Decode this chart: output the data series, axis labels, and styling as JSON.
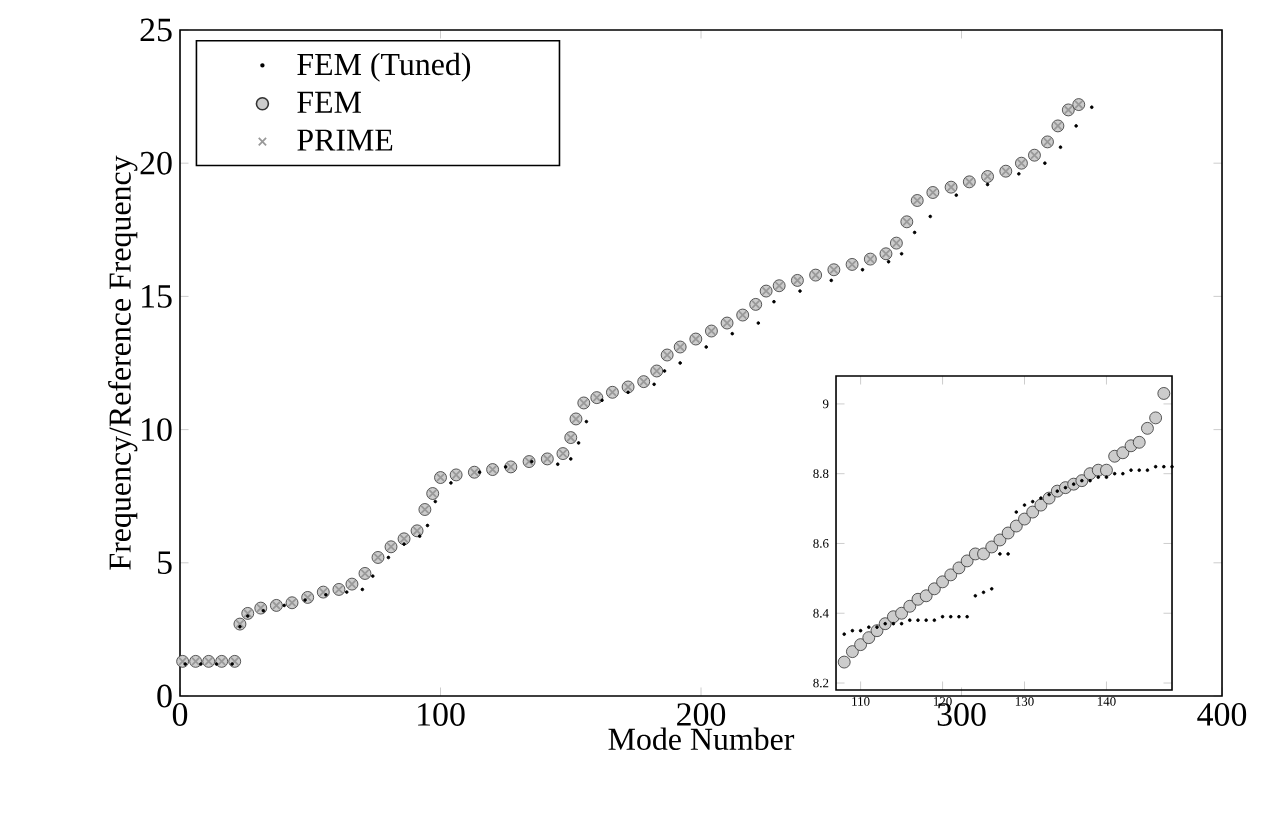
{
  "chart_data": [
    {
      "type": "scatter",
      "xlabel": "Mode Number",
      "ylabel": "Frequency/Reference Frequency",
      "xlim": [
        0,
        400
      ],
      "ylim": [
        0,
        25
      ],
      "xticks": [
        0,
        100,
        200,
        300,
        400
      ],
      "yticks": [
        0,
        5,
        10,
        15,
        20,
        25
      ],
      "legend": "top left",
      "grid": false,
      "series": [
        {
          "name": "FEM (Tuned)",
          "color": "#000000",
          "marker": "point",
          "x": [
            2,
            8,
            14,
            20,
            23,
            26,
            32,
            40,
            48,
            56,
            64,
            70,
            74,
            80,
            86,
            92,
            95,
            98,
            104,
            115,
            125,
            135,
            145,
            150,
            153,
            156,
            162,
            172,
            182,
            186,
            192,
            202,
            212,
            222,
            228,
            238,
            250,
            262,
            272,
            277,
            282,
            288,
            298,
            310,
            322,
            332,
            338,
            344,
            350
          ],
          "values": [
            1.2,
            1.2,
            1.2,
            1.2,
            2.6,
            3.0,
            3.2,
            3.4,
            3.6,
            3.8,
            3.9,
            4.0,
            4.5,
            5.2,
            5.7,
            6.0,
            6.4,
            7.3,
            8.0,
            8.4,
            8.6,
            8.8,
            8.7,
            8.9,
            9.5,
            10.3,
            11.1,
            11.4,
            11.7,
            12.2,
            12.5,
            13.1,
            13.6,
            14.0,
            14.8,
            15.2,
            15.6,
            16.0,
            16.3,
            16.6,
            17.4,
            18.0,
            18.8,
            19.2,
            19.6,
            20.0,
            20.6,
            21.4,
            22.1
          ]
        },
        {
          "name": "FEM",
          "color": "#333333",
          "marker": "circle",
          "x": [
            1,
            6,
            11,
            16,
            21,
            23,
            26,
            31,
            37,
            43,
            49,
            55,
            61,
            66,
            71,
            76,
            81,
            86,
            91,
            94,
            97,
            100,
            106,
            113,
            120,
            127,
            134,
            141,
            147,
            150,
            152,
            155,
            160,
            166,
            172,
            178,
            183,
            187,
            192,
            198,
            204,
            210,
            216,
            221,
            225,
            230,
            237,
            244,
            251,
            258,
            265,
            271,
            275,
            279,
            283,
            289,
            296,
            303,
            310,
            317,
            323,
            328,
            333,
            337,
            341,
            345
          ],
          "values": [
            1.3,
            1.3,
            1.3,
            1.3,
            1.3,
            2.7,
            3.1,
            3.3,
            3.4,
            3.5,
            3.7,
            3.9,
            4.0,
            4.2,
            4.6,
            5.2,
            5.6,
            5.9,
            6.2,
            7.0,
            7.6,
            8.2,
            8.3,
            8.4,
            8.5,
            8.6,
            8.8,
            8.9,
            9.1,
            9.7,
            10.4,
            11.0,
            11.2,
            11.4,
            11.6,
            11.8,
            12.2,
            12.8,
            13.1,
            13.4,
            13.7,
            14.0,
            14.3,
            14.7,
            15.2,
            15.4,
            15.6,
            15.8,
            16.0,
            16.2,
            16.4,
            16.6,
            17.0,
            17.8,
            18.6,
            18.9,
            19.1,
            19.3,
            19.5,
            19.7,
            20.0,
            20.3,
            20.8,
            21.4,
            22.0,
            22.2
          ]
        },
        {
          "name": "PRIME",
          "color": "#999999",
          "marker": "cross",
          "x": [
            1,
            6,
            11,
            16,
            21,
            23,
            26,
            31,
            37,
            43,
            49,
            55,
            61,
            66,
            71,
            76,
            81,
            86,
            91,
            94,
            97,
            100,
            106,
            113,
            120,
            127,
            134,
            141,
            147,
            150,
            152,
            155,
            160,
            166,
            172,
            178,
            183,
            187,
            192,
            198,
            204,
            210,
            216,
            221,
            225,
            230,
            237,
            244,
            251,
            258,
            265,
            271,
            275,
            279,
            283,
            289,
            296,
            303,
            310,
            317,
            323,
            328,
            333,
            337,
            341,
            345
          ],
          "values": [
            1.3,
            1.3,
            1.3,
            1.3,
            1.3,
            2.7,
            3.1,
            3.3,
            3.4,
            3.5,
            3.7,
            3.9,
            4.0,
            4.2,
            4.6,
            5.2,
            5.6,
            5.9,
            6.2,
            7.0,
            7.6,
            8.2,
            8.3,
            8.4,
            8.5,
            8.6,
            8.8,
            8.9,
            9.1,
            9.7,
            10.4,
            11.0,
            11.2,
            11.4,
            11.6,
            11.8,
            12.2,
            12.8,
            13.1,
            13.4,
            13.7,
            14.0,
            14.3,
            14.7,
            15.2,
            15.4,
            15.6,
            15.8,
            16.0,
            16.2,
            16.4,
            16.6,
            17.0,
            17.8,
            18.6,
            18.9,
            19.1,
            19.3,
            19.5,
            19.7,
            20.0,
            20.3,
            20.8,
            21.4,
            22.0,
            22.2
          ]
        }
      ]
    },
    {
      "type": "scatter",
      "xlim": [
        107,
        148
      ],
      "ylim": [
        8.18,
        9.08
      ],
      "xticks": [
        110,
        120,
        130,
        140
      ],
      "yticks": [
        8.2,
        8.4,
        8.6,
        8.8,
        9
      ],
      "legend": false,
      "grid": false,
      "series": [
        {
          "color": "#000000",
          "marker": "point",
          "x": [
            108,
            109,
            110,
            111,
            112,
            113,
            114,
            115,
            116,
            117,
            118,
            119,
            120,
            121,
            122,
            123,
            124,
            125,
            126,
            127,
            128,
            129,
            130,
            131,
            132,
            133,
            134,
            135,
            136,
            137,
            138,
            139,
            140,
            141,
            142,
            143,
            144,
            145,
            146,
            147,
            148
          ],
          "values": [
            8.34,
            8.35,
            8.35,
            8.36,
            8.36,
            8.37,
            8.37,
            8.37,
            8.38,
            8.38,
            8.38,
            8.38,
            8.39,
            8.39,
            8.39,
            8.39,
            8.45,
            8.46,
            8.47,
            8.57,
            8.57,
            8.69,
            8.71,
            8.72,
            8.73,
            8.74,
            8.75,
            8.76,
            8.77,
            8.78,
            8.78,
            8.79,
            8.79,
            8.8,
            8.8,
            8.81,
            8.81,
            8.81,
            8.82,
            8.82,
            8.82
          ]
        },
        {
          "color": "#333333",
          "marker": "circle",
          "x": [
            108,
            109,
            110,
            111,
            112,
            113,
            114,
            115,
            116,
            117,
            118,
            119,
            120,
            121,
            122,
            123,
            124,
            125,
            126,
            127,
            128,
            129,
            130,
            131,
            132,
            133,
            134,
            135,
            136,
            137,
            138,
            139,
            140,
            141,
            142,
            143,
            144,
            145,
            146,
            147
          ],
          "values": [
            8.26,
            8.29,
            8.31,
            8.33,
            8.35,
            8.37,
            8.39,
            8.4,
            8.42,
            8.44,
            8.45,
            8.47,
            8.49,
            8.51,
            8.53,
            8.55,
            8.57,
            8.57,
            8.59,
            8.61,
            8.63,
            8.65,
            8.67,
            8.69,
            8.71,
            8.73,
            8.75,
            8.76,
            8.77,
            8.78,
            8.8,
            8.81,
            8.81,
            8.85,
            8.86,
            8.88,
            8.89,
            8.93,
            8.96,
            9.03
          ]
        }
      ]
    }
  ]
}
